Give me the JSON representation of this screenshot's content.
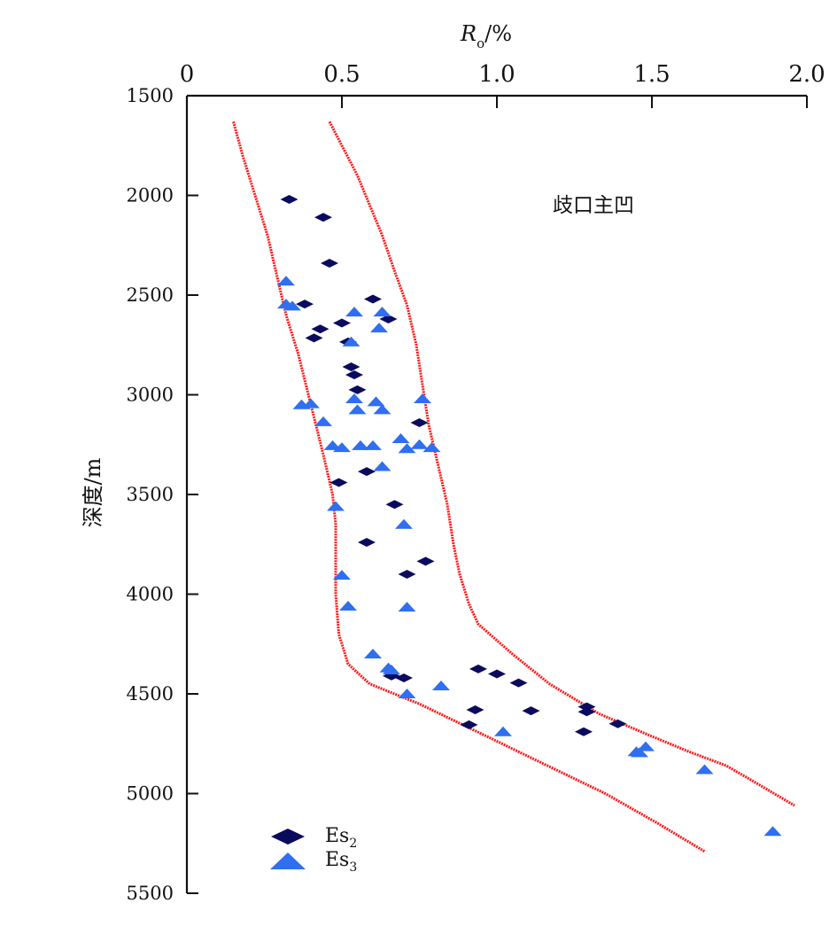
{
  "chart_data": {
    "type": "scatter",
    "x_axis": {
      "label_main": "R",
      "label_sub": "o",
      "label_unit": "/%",
      "position": "top",
      "range": [
        0,
        2.0
      ],
      "ticks": [
        0,
        0.5,
        1.0,
        1.5,
        2.0
      ],
      "tick_labels": [
        "0",
        "0.5",
        "1.0",
        "1.5",
        "2.0"
      ]
    },
    "y_axis": {
      "label": "深度/m",
      "range": [
        1500,
        5500
      ],
      "inverted": true,
      "ticks": [
        1500,
        2000,
        2500,
        3000,
        3500,
        4000,
        4500,
        5000,
        5500
      ],
      "tick_labels": [
        "1500",
        "2000",
        "2500",
        "3000",
        "3500",
        "4000",
        "4500",
        "5000",
        "5500"
      ]
    },
    "annotation": "歧口主凹",
    "grid": false,
    "legend_position": "bottom-left",
    "colors": {
      "es2": "#0b0b5e",
      "es3": "#2f6ff0",
      "envelope": "#ff1a1a"
    },
    "series": [
      {
        "name_main": "Es",
        "name_sub": "2",
        "marker": "diamond",
        "points": [
          [
            0.33,
            2020
          ],
          [
            0.44,
            2110
          ],
          [
            0.46,
            2340
          ],
          [
            0.6,
            2520
          ],
          [
            0.38,
            2545
          ],
          [
            0.65,
            2620
          ],
          [
            0.5,
            2640
          ],
          [
            0.43,
            2670
          ],
          [
            0.41,
            2715
          ],
          [
            0.52,
            2735
          ],
          [
            0.53,
            2860
          ],
          [
            0.54,
            2900
          ],
          [
            0.55,
            2975
          ],
          [
            0.75,
            3140
          ],
          [
            0.58,
            3385
          ],
          [
            0.49,
            3440
          ],
          [
            0.67,
            3550
          ],
          [
            0.58,
            3740
          ],
          [
            0.77,
            3835
          ],
          [
            0.71,
            3900
          ],
          [
            0.94,
            4375
          ],
          [
            1.0,
            4400
          ],
          [
            0.66,
            4410
          ],
          [
            0.7,
            4420
          ],
          [
            1.07,
            4445
          ],
          [
            1.29,
            4565
          ],
          [
            0.93,
            4580
          ],
          [
            1.11,
            4585
          ],
          [
            1.29,
            4590
          ],
          [
            1.39,
            4650
          ],
          [
            0.91,
            4655
          ],
          [
            1.28,
            4690
          ]
        ]
      },
      {
        "name_main": "Es",
        "name_sub": "3",
        "marker": "triangle",
        "points": [
          [
            0.32,
            2430
          ],
          [
            0.32,
            2545
          ],
          [
            0.34,
            2555
          ],
          [
            0.54,
            2585
          ],
          [
            0.63,
            2585
          ],
          [
            0.62,
            2665
          ],
          [
            0.53,
            2735
          ],
          [
            0.76,
            3020
          ],
          [
            0.37,
            3050
          ],
          [
            0.4,
            3045
          ],
          [
            0.54,
            3020
          ],
          [
            0.61,
            3035
          ],
          [
            0.55,
            3075
          ],
          [
            0.63,
            3075
          ],
          [
            0.44,
            3135
          ],
          [
            0.69,
            3220
          ],
          [
            0.47,
            3255
          ],
          [
            0.56,
            3255
          ],
          [
            0.6,
            3255
          ],
          [
            0.5,
            3265
          ],
          [
            0.71,
            3270
          ],
          [
            0.75,
            3250
          ],
          [
            0.79,
            3265
          ],
          [
            0.63,
            3360
          ],
          [
            0.48,
            3560
          ],
          [
            0.7,
            3650
          ],
          [
            0.5,
            3905
          ],
          [
            0.52,
            4060
          ],
          [
            0.71,
            4065
          ],
          [
            0.6,
            4300
          ],
          [
            0.65,
            4370
          ],
          [
            0.66,
            4380
          ],
          [
            0.82,
            4460
          ],
          [
            0.71,
            4500
          ],
          [
            1.02,
            4690
          ],
          [
            1.48,
            4765
          ],
          [
            1.45,
            4790
          ],
          [
            1.46,
            4795
          ],
          [
            1.67,
            4880
          ],
          [
            1.89,
            5190
          ]
        ]
      }
    ],
    "envelope_lines": [
      {
        "points": [
          [
            0.15,
            1630
          ],
          [
            0.18,
            1800
          ],
          [
            0.22,
            2000
          ],
          [
            0.26,
            2200
          ],
          [
            0.29,
            2400
          ],
          [
            0.32,
            2600
          ],
          [
            0.36,
            2800
          ],
          [
            0.4,
            3050
          ],
          [
            0.44,
            3300
          ],
          [
            0.47,
            3500
          ],
          [
            0.48,
            3650
          ],
          [
            0.48,
            4000
          ],
          [
            0.49,
            4200
          ],
          [
            0.52,
            4350
          ],
          [
            0.59,
            4450
          ],
          [
            0.75,
            4550
          ],
          [
            0.95,
            4700
          ],
          [
            1.15,
            4850
          ],
          [
            1.35,
            5000
          ],
          [
            1.52,
            5150
          ],
          [
            1.67,
            5290
          ]
        ]
      },
      {
        "points": [
          [
            0.46,
            1630
          ],
          [
            0.5,
            1750
          ],
          [
            0.55,
            1900
          ],
          [
            0.59,
            2050
          ],
          [
            0.63,
            2200
          ],
          [
            0.67,
            2380
          ],
          [
            0.71,
            2550
          ],
          [
            0.74,
            2750
          ],
          [
            0.76,
            2950
          ],
          [
            0.78,
            3150
          ],
          [
            0.81,
            3350
          ],
          [
            0.84,
            3550
          ],
          [
            0.86,
            3750
          ],
          [
            0.88,
            3900
          ],
          [
            0.91,
            4050
          ],
          [
            0.94,
            4150
          ],
          [
            1.05,
            4300
          ],
          [
            1.17,
            4450
          ],
          [
            1.33,
            4600
          ],
          [
            1.48,
            4700
          ],
          [
            1.62,
            4790
          ],
          [
            1.74,
            4860
          ],
          [
            1.84,
            4950
          ],
          [
            1.96,
            5060
          ]
        ]
      }
    ]
  }
}
